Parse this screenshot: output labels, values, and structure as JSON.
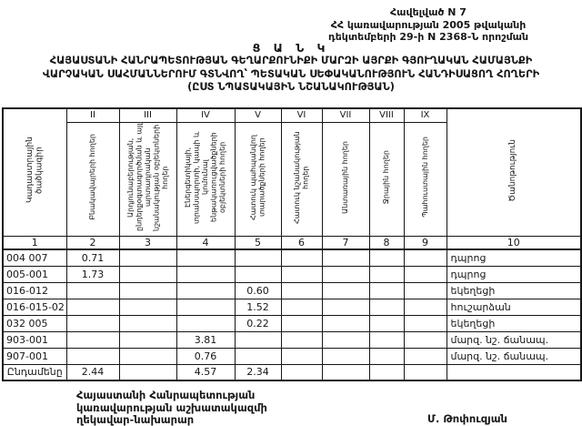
{
  "appendix": {
    "line1": "Հավելված N 7",
    "line2": "ՀՀ կառավարության 2005 թվականի",
    "line3": "դեկտեմբերի 29-ի N 2368-Ն որոշման"
  },
  "doc": {
    "list_label": "Ց Ա Ն Կ",
    "title_line1": "ՀԱՅԱՍՏԱՆԻ ՀԱՆՐԱՊԵՏՈՒԹՅԱՆ ԳԵՂԱՐՔՈՒՆԻՔԻ ՄԱՐԶԻ ԱՅՐՔԻ ԳՅՈՒՂԱԿԱՆ ՀԱՄԱՅՆՔԻ",
    "title_line2": "ՎԱՐՉԱԿԱՆ ՍԱՀՄԱՆՆԵՐՈՒՄ ԳՏՆՎՈՂ՝ ՊԵՏԱԿԱՆ ՍԵՓԱԿԱՆՈՒԹՅՈՒՆ ՀԱՆԴԻՍԱՑՈՂ ՀՈՂԵՐԻ",
    "title_line3": "(ԸՍՏ ՆՊԱՏԱԿԱՅԻՆ ՆՇԱՆԱԿՈՒԹՅԱՆ)"
  },
  "table": {
    "corner_header": "Կադաստրային ծածկագիր",
    "note_header": "Ծանոթություն",
    "roman_numerals": [
      "II",
      "III",
      "IV",
      "V",
      "VI",
      "VII",
      "VIII",
      "IX"
    ],
    "rotated_headers": [
      "Բնակավայրերի հողեր",
      "Արդյունաբերության, ընդերքօգտագործման և այլ արտադրական նշանակության օբյեկտների հողեր",
      "Էներգետիկայի, տրանսպորտի, կապի և կոմունալ ենթակառուցվածքների օբյեկտների հողեր",
      "Հատուկ պահպանվող տարածքների հողեր",
      "Հատուկ նշանակության հողեր",
      "Անտառային հողեր",
      "Ջրային հողեր",
      "Պահուստային հողեր"
    ],
    "column_numbers": [
      "1",
      "2",
      "3",
      "4",
      "5",
      "6",
      "7",
      "8",
      "9",
      "10"
    ],
    "rows": [
      {
        "code": "004 007",
        "values": [
          "0.71",
          "",
          "",
          "",
          "",
          "",
          "",
          ""
        ],
        "note": "դպրոց"
      },
      {
        "code": "005-001",
        "values": [
          "1.73",
          "",
          "",
          "",
          "",
          "",
          "",
          ""
        ],
        "note": "դպրոց"
      },
      {
        "code": "016-012",
        "values": [
          "",
          "",
          "",
          "0.60",
          "",
          "",
          "",
          ""
        ],
        "note": "եկեղեցի"
      },
      {
        "code": "016-015-02",
        "values": [
          "",
          "",
          "",
          "1.52",
          "",
          "",
          "",
          ""
        ],
        "note": "հուշարձան"
      },
      {
        "code": "032 005",
        "values": [
          "",
          "",
          "",
          "0.22",
          "",
          "",
          "",
          ""
        ],
        "note": "եկեղեցի"
      },
      {
        "code": "903-001",
        "values": [
          "",
          "",
          "3.81",
          "",
          "",
          "",
          "",
          ""
        ],
        "note": "մարզ. նշ. ճանապ."
      },
      {
        "code": "907-001",
        "values": [
          "",
          "",
          "0.76",
          "",
          "",
          "",
          "",
          ""
        ],
        "note": "մարզ. նշ. ճանապ."
      }
    ],
    "total_row": {
      "label": "Ընդամենը",
      "values": [
        "2.44",
        "",
        "4.57",
        "2.34",
        "",
        "",
        "",
        ""
      ],
      "note": ""
    }
  },
  "footer": {
    "left_line1": "Հայաստանի Հանրապետության",
    "left_line2": "կառավարության աշխատակազմի",
    "left_line3": "ղեկավար-նախարար",
    "signature": "Մ. Թոփուզյան"
  }
}
